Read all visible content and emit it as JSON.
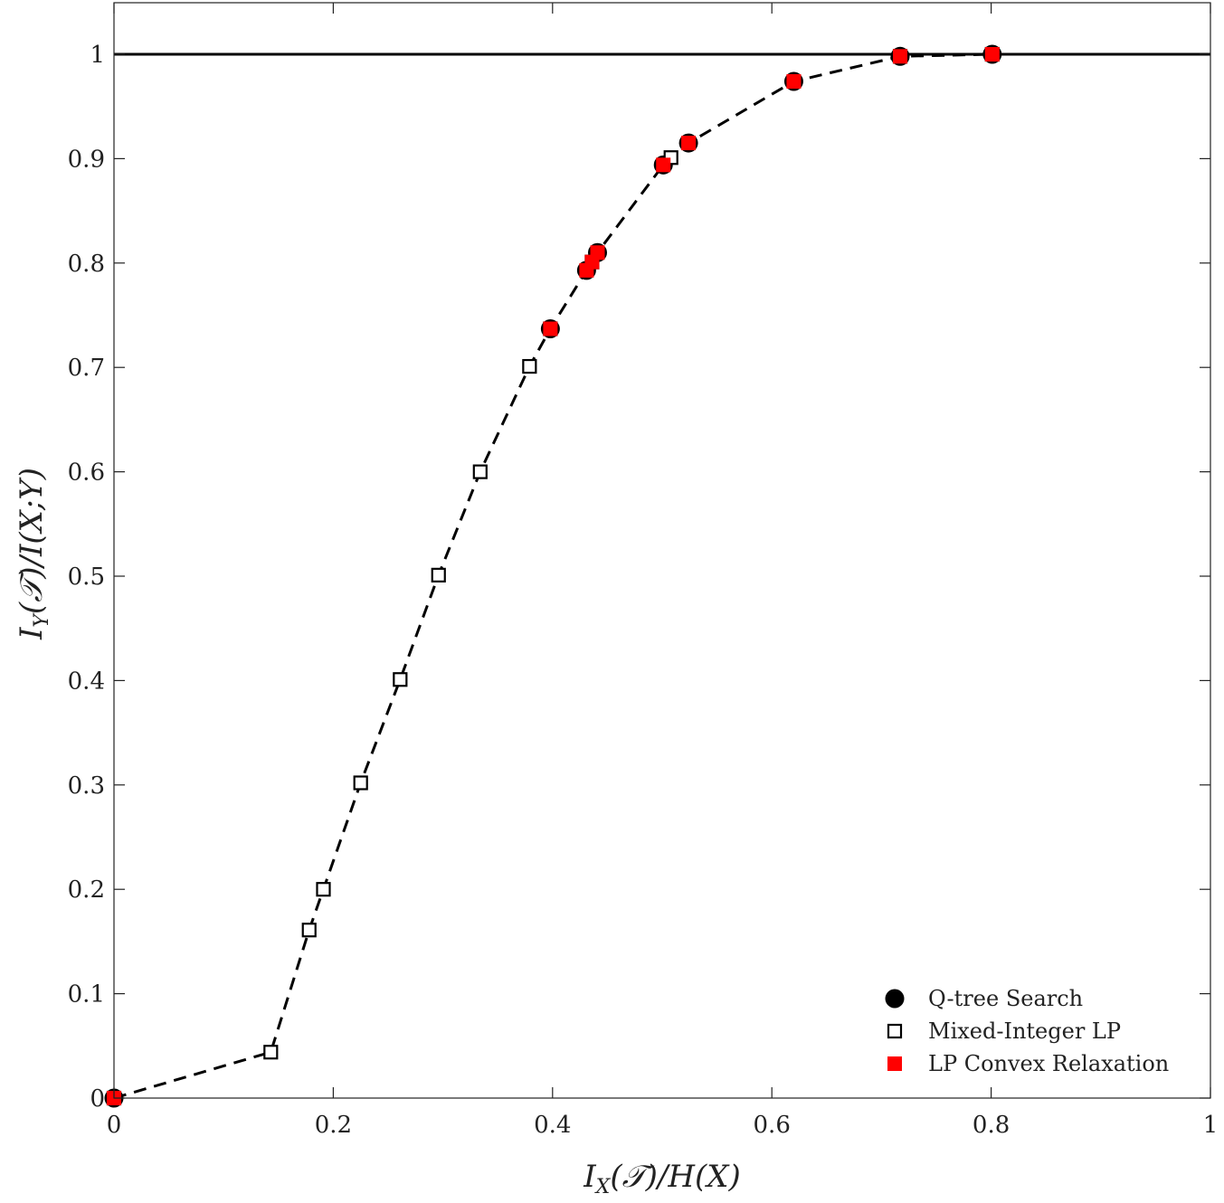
{
  "chart_data": {
    "type": "scatter",
    "title": "",
    "xlabel": "I_X(𝒯)/H(X)",
    "ylabel": "I_Y(𝒯)/I(X;Y)",
    "xlim": [
      0,
      1
    ],
    "ylim": [
      0,
      1.05
    ],
    "xticks": [
      0,
      0.2,
      0.4,
      0.6,
      0.8,
      1
    ],
    "xtick_labels": [
      "0",
      "0.2",
      "0.4",
      "0.6",
      "0.8",
      "1"
    ],
    "yticks": [
      0,
      0.1,
      0.2,
      0.3,
      0.4,
      0.5,
      0.6,
      0.7,
      0.8,
      0.9,
      1
    ],
    "ytick_labels": [
      "0",
      "0.1",
      "0.2",
      "0.3",
      "0.4",
      "0.5",
      "0.6",
      "0.7",
      "0.8",
      "0.9",
      "1"
    ],
    "grid": false,
    "legend_position": "bottom-right",
    "reference_line": {
      "y": 1,
      "color": "#000000"
    },
    "curve": {
      "style": "dashed",
      "color": "#000000",
      "x": [
        0,
        0.143,
        0.178,
        0.191,
        0.225,
        0.261,
        0.296,
        0.334,
        0.379,
        0.398,
        0.431,
        0.436,
        0.441,
        0.501,
        0.508,
        0.524,
        0.62,
        0.717,
        0.801
      ],
      "y": [
        0,
        0.044,
        0.161,
        0.2,
        0.302,
        0.401,
        0.501,
        0.6,
        0.701,
        0.737,
        0.793,
        0.801,
        0.81,
        0.894,
        0.901,
        0.915,
        0.974,
        0.998,
        1.0
      ]
    },
    "series": [
      {
        "name": "Q-tree Search",
        "marker": "circle",
        "color": "#000000",
        "x": [
          0,
          0.398,
          0.431,
          0.441,
          0.501,
          0.524,
          0.62,
          0.717,
          0.801
        ],
        "y": [
          0,
          0.737,
          0.793,
          0.81,
          0.894,
          0.915,
          0.974,
          0.998,
          1.0
        ]
      },
      {
        "name": "Mixed-Integer LP",
        "marker": "square-open",
        "color": "#000000",
        "x": [
          0,
          0.143,
          0.178,
          0.191,
          0.225,
          0.261,
          0.296,
          0.334,
          0.379,
          0.398,
          0.436,
          0.508,
          0.717,
          0.801
        ],
        "y": [
          0,
          0.044,
          0.161,
          0.2,
          0.302,
          0.401,
          0.501,
          0.6,
          0.701,
          0.737,
          0.801,
          0.901,
          0.998,
          1.0
        ]
      },
      {
        "name": "LP Convex Relaxation",
        "marker": "square-filled",
        "color": "#ff0000",
        "x": [
          0,
          0.398,
          0.431,
          0.436,
          0.441,
          0.501,
          0.524,
          0.62,
          0.717,
          0.801
        ],
        "y": [
          0,
          0.737,
          0.793,
          0.801,
          0.81,
          0.894,
          0.915,
          0.974,
          0.998,
          1.0
        ]
      }
    ]
  }
}
